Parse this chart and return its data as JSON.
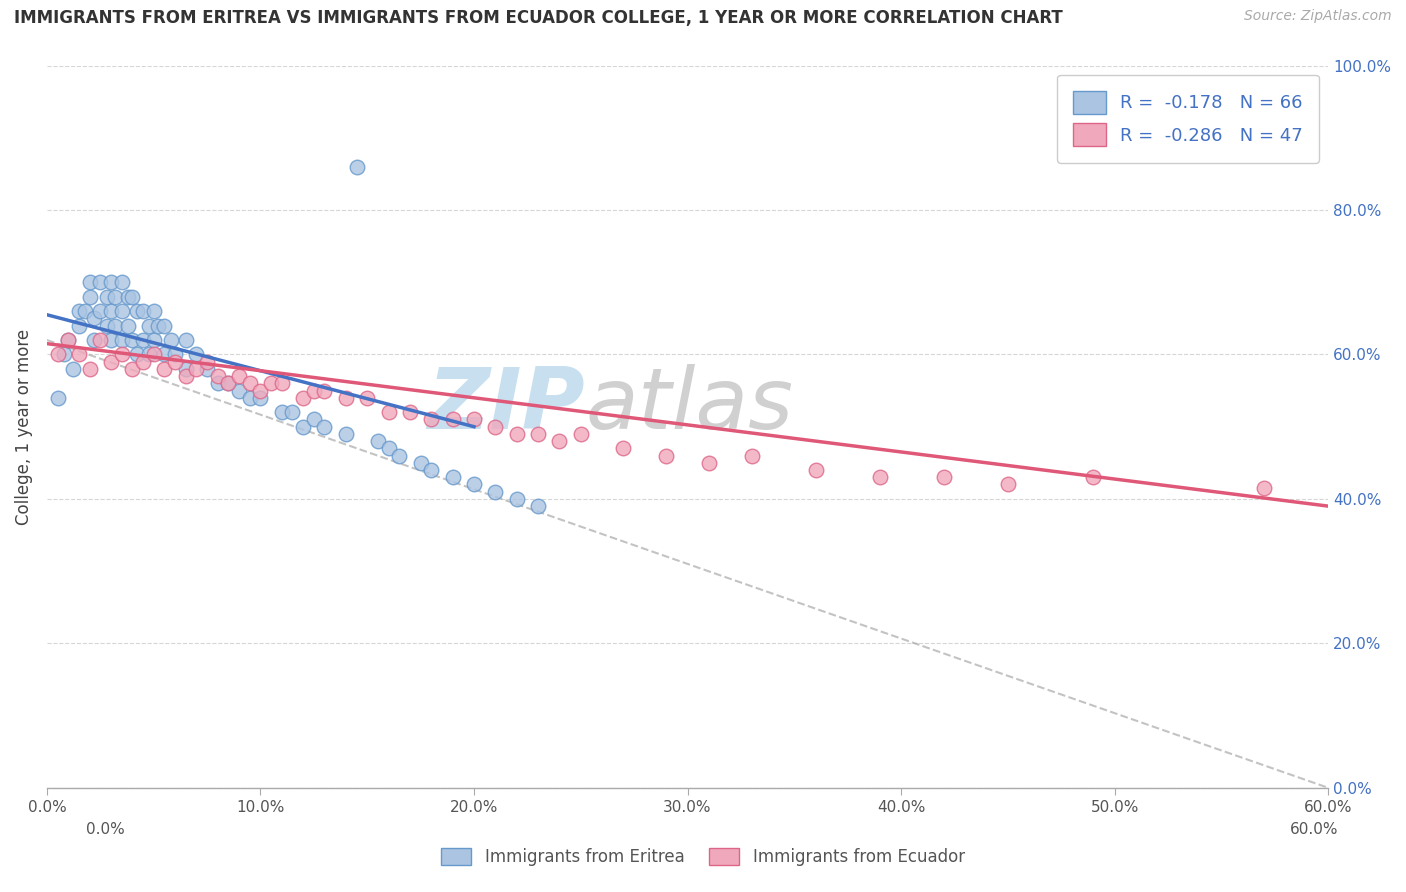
{
  "title": "IMMIGRANTS FROM ERITREA VS IMMIGRANTS FROM ECUADOR COLLEGE, 1 YEAR OR MORE CORRELATION CHART",
  "source": "Source: ZipAtlas.com",
  "ylabel": "College, 1 year or more",
  "xlabel_blue": "Immigrants from Eritrea",
  "xlabel_pink": "Immigrants from Ecuador",
  "legend_line1": "R =  -0.178   N = 66",
  "legend_line2": "R =  -0.286   N = 47",
  "xlim": [
    0.0,
    0.6
  ],
  "ylim": [
    0.0,
    1.0
  ],
  "xticks": [
    0.0,
    0.1,
    0.2,
    0.3,
    0.4,
    0.5,
    0.6
  ],
  "yticks": [
    0.0,
    0.2,
    0.4,
    0.6,
    0.8,
    1.0
  ],
  "color_blue": "#aac4e2",
  "color_pink": "#f0a8bc",
  "color_blue_edge": "#6699cc",
  "color_pink_edge": "#dd6688",
  "color_blue_line": "#4472c4",
  "color_pink_line": "#e05878",
  "background": "#ffffff",
  "blue_x": [
    0.005,
    0.008,
    0.01,
    0.012,
    0.015,
    0.015,
    0.018,
    0.02,
    0.02,
    0.022,
    0.022,
    0.025,
    0.025,
    0.028,
    0.028,
    0.03,
    0.03,
    0.03,
    0.032,
    0.032,
    0.035,
    0.035,
    0.035,
    0.038,
    0.038,
    0.04,
    0.04,
    0.042,
    0.042,
    0.045,
    0.045,
    0.048,
    0.048,
    0.05,
    0.05,
    0.052,
    0.055,
    0.055,
    0.058,
    0.06,
    0.065,
    0.065,
    0.07,
    0.075,
    0.08,
    0.085,
    0.09,
    0.095,
    0.1,
    0.11,
    0.115,
    0.12,
    0.125,
    0.13,
    0.14,
    0.145,
    0.155,
    0.16,
    0.165,
    0.175,
    0.18,
    0.19,
    0.2,
    0.21,
    0.22,
    0.23
  ],
  "blue_y": [
    0.54,
    0.6,
    0.62,
    0.58,
    0.64,
    0.66,
    0.66,
    0.68,
    0.7,
    0.65,
    0.62,
    0.7,
    0.66,
    0.68,
    0.64,
    0.7,
    0.66,
    0.62,
    0.68,
    0.64,
    0.7,
    0.66,
    0.62,
    0.68,
    0.64,
    0.68,
    0.62,
    0.66,
    0.6,
    0.66,
    0.62,
    0.64,
    0.6,
    0.66,
    0.62,
    0.64,
    0.64,
    0.6,
    0.62,
    0.6,
    0.62,
    0.58,
    0.6,
    0.58,
    0.56,
    0.56,
    0.55,
    0.54,
    0.54,
    0.52,
    0.52,
    0.5,
    0.51,
    0.5,
    0.49,
    0.86,
    0.48,
    0.47,
    0.46,
    0.45,
    0.44,
    0.43,
    0.42,
    0.41,
    0.4,
    0.39
  ],
  "pink_x": [
    0.005,
    0.01,
    0.015,
    0.02,
    0.025,
    0.03,
    0.035,
    0.04,
    0.045,
    0.05,
    0.055,
    0.06,
    0.065,
    0.07,
    0.075,
    0.08,
    0.085,
    0.09,
    0.095,
    0.1,
    0.105,
    0.11,
    0.12,
    0.125,
    0.13,
    0.14,
    0.15,
    0.16,
    0.17,
    0.18,
    0.19,
    0.2,
    0.21,
    0.22,
    0.23,
    0.24,
    0.25,
    0.27,
    0.29,
    0.31,
    0.33,
    0.36,
    0.39,
    0.42,
    0.45,
    0.49,
    0.57
  ],
  "pink_y": [
    0.6,
    0.62,
    0.6,
    0.58,
    0.62,
    0.59,
    0.6,
    0.58,
    0.59,
    0.6,
    0.58,
    0.59,
    0.57,
    0.58,
    0.59,
    0.57,
    0.56,
    0.57,
    0.56,
    0.55,
    0.56,
    0.56,
    0.54,
    0.55,
    0.55,
    0.54,
    0.54,
    0.52,
    0.52,
    0.51,
    0.51,
    0.51,
    0.5,
    0.49,
    0.49,
    0.48,
    0.49,
    0.47,
    0.46,
    0.45,
    0.46,
    0.44,
    0.43,
    0.43,
    0.42,
    0.43,
    0.415
  ],
  "blue_line_x": [
    0.0,
    0.2
  ],
  "blue_line_y": [
    0.655,
    0.5
  ],
  "pink_line_x": [
    0.0,
    0.6
  ],
  "pink_line_y": [
    0.615,
    0.39
  ],
  "diag_line_x": [
    0.0,
    0.6
  ],
  "diag_line_y": [
    0.62,
    0.0
  ],
  "watermark_zip": "ZIP",
  "watermark_atlas": "atlas"
}
